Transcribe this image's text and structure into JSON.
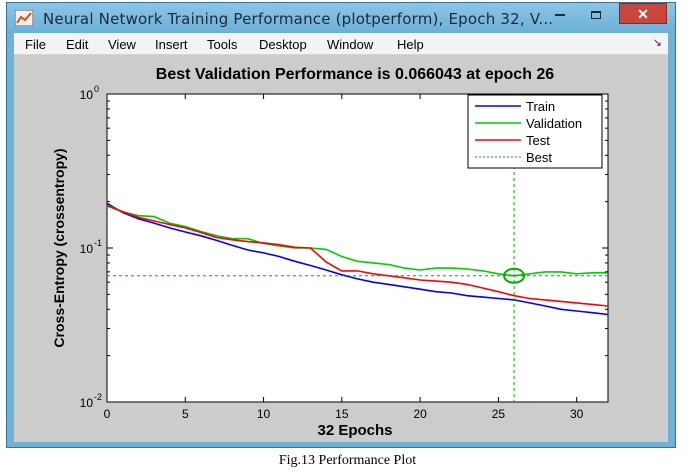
{
  "window": {
    "title": "Neural Network Training Performance (plotperform), Epoch 32, V...",
    "minimize_icon": "minimize-icon",
    "maximize_icon": "maximize-icon",
    "close_label": "✕",
    "app_icon": "matlab-figure-icon"
  },
  "menu": {
    "items": [
      "File",
      "Edit",
      "View",
      "Insert",
      "Tools",
      "Desktop",
      "Window",
      "Help"
    ],
    "dock_icon": "dock-arrow-icon",
    "dock_glyph": "↘"
  },
  "colors": {
    "train": "#0000ff",
    "validation": "#00cc00",
    "test": "#ff0000",
    "best": "#00aa00"
  },
  "chart_data": {
    "type": "line",
    "title": "Best Validation Performance is 0.066043 at epoch 26",
    "xlabel": "32 Epochs",
    "ylabel": "Cross-Entropy  (crossentropy)",
    "xlim": [
      0,
      32
    ],
    "ylim": [
      0.01,
      1
    ],
    "yscale": "log",
    "x_ticks": [
      "0",
      "5",
      "10",
      "15",
      "20",
      "25",
      "30"
    ],
    "y_ticks": [
      {
        "base": "10",
        "exp": "0",
        "value": 1
      },
      {
        "base": "10",
        "exp": "-1",
        "value": 0.1
      },
      {
        "base": "10",
        "exp": "-2",
        "value": 0.01
      }
    ],
    "legend_position": "top-right",
    "legend": [
      "Train",
      "Validation",
      "Test",
      "Best"
    ],
    "series": [
      {
        "name": "Train",
        "x": [
          0,
          1,
          2,
          3,
          4,
          5,
          6,
          7,
          8,
          9,
          10,
          11,
          12,
          13,
          14,
          15,
          16,
          17,
          18,
          19,
          20,
          21,
          22,
          23,
          24,
          25,
          26,
          27,
          28,
          29,
          30,
          31,
          32
        ],
        "y": [
          0.195,
          0.17,
          0.155,
          0.145,
          0.135,
          0.127,
          0.12,
          0.112,
          0.104,
          0.097,
          0.093,
          0.088,
          0.082,
          0.077,
          0.072,
          0.067,
          0.063,
          0.06,
          0.058,
          0.056,
          0.054,
          0.052,
          0.051,
          0.049,
          0.048,
          0.047,
          0.046,
          0.044,
          0.042,
          0.04,
          0.039,
          0.038,
          0.037
        ]
      },
      {
        "name": "Validation",
        "x": [
          0,
          1,
          2,
          3,
          4,
          5,
          6,
          7,
          8,
          9,
          10,
          11,
          12,
          13,
          14,
          15,
          16,
          17,
          18,
          19,
          20,
          21,
          22,
          23,
          24,
          25,
          26,
          27,
          28,
          29,
          30,
          31,
          32
        ],
        "y": [
          0.19,
          0.172,
          0.162,
          0.16,
          0.145,
          0.138,
          0.128,
          0.12,
          0.115,
          0.115,
          0.107,
          0.103,
          0.1,
          0.1,
          0.098,
          0.088,
          0.082,
          0.08,
          0.078,
          0.074,
          0.072,
          0.074,
          0.074,
          0.073,
          0.071,
          0.068,
          0.066,
          0.068,
          0.07,
          0.07,
          0.068,
          0.069,
          0.069
        ]
      },
      {
        "name": "Test",
        "x": [
          0,
          1,
          2,
          3,
          4,
          5,
          6,
          7,
          8,
          9,
          10,
          11,
          12,
          13,
          14,
          15,
          16,
          17,
          18,
          19,
          20,
          21,
          22,
          23,
          24,
          25,
          26,
          27,
          28,
          29,
          30,
          31,
          32
        ],
        "y": [
          0.188,
          0.172,
          0.158,
          0.15,
          0.142,
          0.135,
          0.126,
          0.117,
          0.113,
          0.11,
          0.108,
          0.105,
          0.101,
          0.1,
          0.081,
          0.071,
          0.071,
          0.068,
          0.066,
          0.064,
          0.062,
          0.061,
          0.06,
          0.058,
          0.055,
          0.052,
          0.049,
          0.047,
          0.046,
          0.045,
          0.044,
          0.043,
          0.042
        ]
      }
    ],
    "best": {
      "epoch": 26,
      "value": 0.066043
    }
  },
  "caption": "Fig.13 Performance Plot"
}
